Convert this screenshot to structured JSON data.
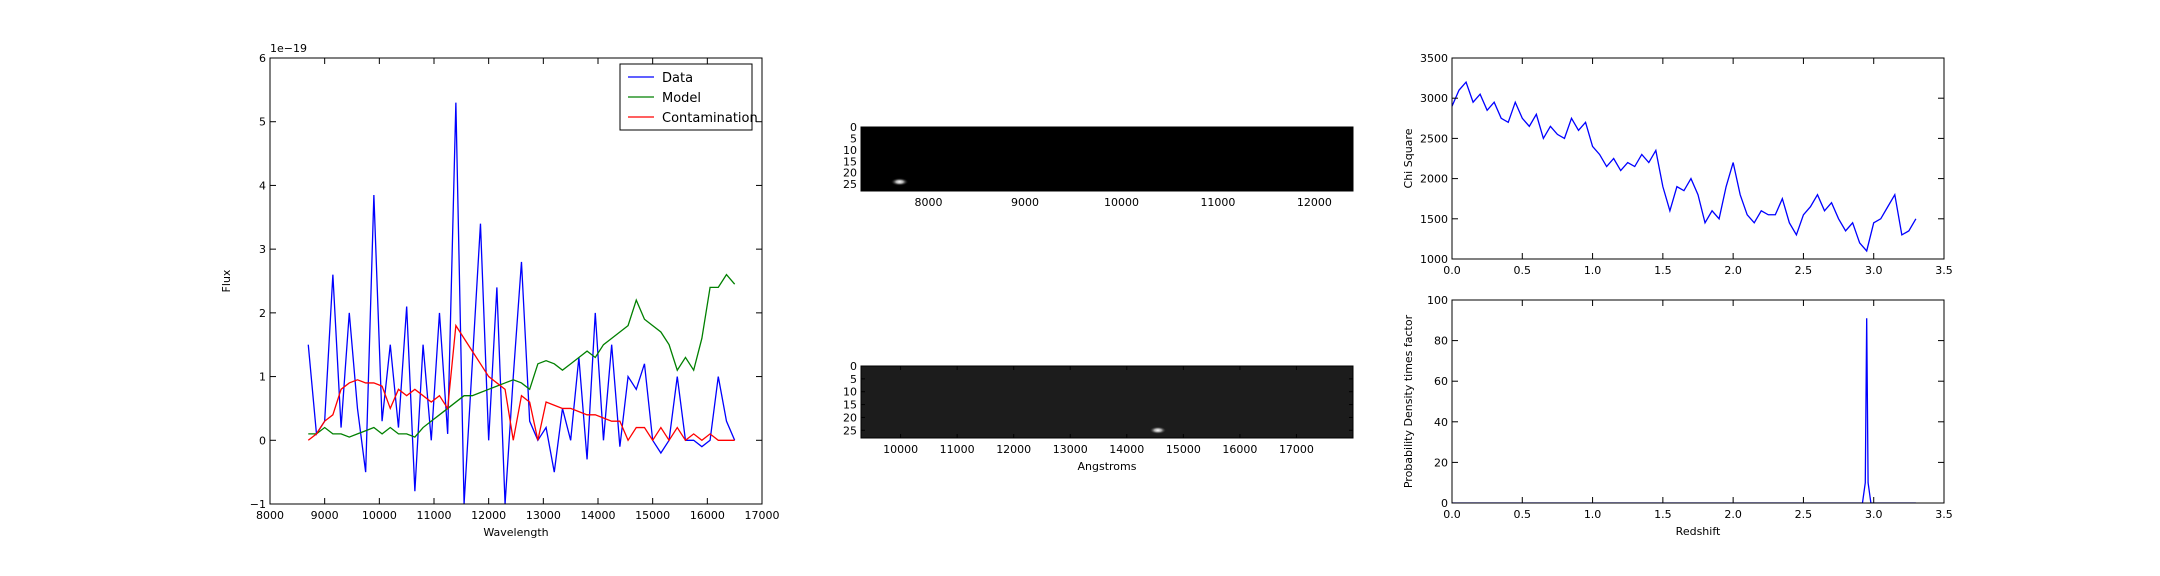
{
  "chart_data": [
    {
      "type": "line",
      "xlabel": "Wavelength",
      "ylabel": "Flux",
      "offset_label": "1e−19",
      "legend": "upper right",
      "xlim": [
        8000,
        17000
      ],
      "xticks": [
        8000,
        9000,
        10000,
        11000,
        12000,
        13000,
        14000,
        15000,
        16000,
        17000
      ],
      "ylim": [
        -1,
        6
      ],
      "yticks": [
        {
          "value": -1,
          "label": "−1"
        },
        0,
        1,
        2,
        3,
        4,
        5,
        6
      ],
      "x": [
        8700,
        8850,
        9000,
        9150,
        9300,
        9450,
        9600,
        9750,
        9900,
        10050,
        10200,
        10350,
        10500,
        10650,
        10800,
        10950,
        11100,
        11250,
        11400,
        11550,
        11700,
        11850,
        12000,
        12150,
        12300,
        12450,
        12600,
        12750,
        12900,
        13050,
        13200,
        13350,
        13500,
        13650,
        13800,
        13950,
        14100,
        14250,
        14400,
        14550,
        14700,
        14850,
        15000,
        15150,
        15300,
        15450,
        15600,
        15750,
        15900,
        16050,
        16200,
        16350,
        16500
      ],
      "series": [
        {
          "name": "Data",
          "color": "#0000ff",
          "values": [
            1.5,
            0.1,
            0.3,
            2.6,
            0.2,
            2.0,
            0.5,
            -0.5,
            3.85,
            0.3,
            1.5,
            0.2,
            2.1,
            -0.8,
            1.5,
            0.0,
            2.0,
            0.1,
            5.3,
            -1.0,
            1.2,
            3.4,
            0.0,
            2.4,
            -1.0,
            1.0,
            2.8,
            0.3,
            0.0,
            0.2,
            -0.5,
            0.5,
            0.0,
            1.3,
            -0.3,
            2.0,
            0.0,
            1.5,
            -0.1,
            1.0,
            0.8,
            1.2,
            0.0,
            -0.2,
            0.0,
            1.0,
            0.0,
            0.0,
            -0.1,
            0.0,
            1.0,
            0.3,
            0.0
          ]
        },
        {
          "name": "Model",
          "color": "#008000",
          "values": [
            0.1,
            0.1,
            0.2,
            0.1,
            0.1,
            0.05,
            0.1,
            0.15,
            0.2,
            0.1,
            0.2,
            0.1,
            0.1,
            0.05,
            0.2,
            0.3,
            0.4,
            0.5,
            0.6,
            0.7,
            0.7,
            0.75,
            0.8,
            0.85,
            0.9,
            0.95,
            0.9,
            0.8,
            1.2,
            1.25,
            1.2,
            1.1,
            1.2,
            1.3,
            1.4,
            1.3,
            1.5,
            1.6,
            1.7,
            1.8,
            2.2,
            1.9,
            1.8,
            1.7,
            1.5,
            1.1,
            1.3,
            1.1,
            1.6,
            2.4,
            2.4,
            2.6,
            2.45
          ]
        },
        {
          "name": "Contamination",
          "color": "#ff0000",
          "values": [
            0,
            0.1,
            0.3,
            0.4,
            0.8,
            0.9,
            0.95,
            0.9,
            0.9,
            0.85,
            0.5,
            0.8,
            0.7,
            0.8,
            0.7,
            0.6,
            0.7,
            0.5,
            1.8,
            1.6,
            1.4,
            1.2,
            1.0,
            0.9,
            0.8,
            0,
            0.7,
            0.6,
            0,
            0.6,
            0.55,
            0.5,
            0.5,
            0.45,
            0.4,
            0.4,
            0.35,
            0.3,
            0.3,
            0,
            0.2,
            0.2,
            0,
            0.2,
            0,
            0.2,
            0,
            0.1,
            0,
            0.1,
            0,
            0,
            0
          ]
        }
      ]
    },
    {
      "type": "image",
      "background": "#000000",
      "xlim": [
        7300,
        12400
      ],
      "xticks": [
        8000,
        9000,
        10000,
        11000,
        12000
      ],
      "ylim": [
        28,
        0
      ],
      "yticks": [
        0,
        5,
        10,
        15,
        20,
        25
      ],
      "spot": {
        "x": 7700,
        "y": 24
      }
    },
    {
      "type": "image",
      "background": "#1c1c1c",
      "xlabel": "Angstroms",
      "xlim": [
        9300,
        18000
      ],
      "xticks": [
        10000,
        11000,
        12000,
        13000,
        14000,
        15000,
        16000,
        17000
      ],
      "ylim": [
        28,
        0
      ],
      "yticks": [
        0,
        5,
        10,
        15,
        20,
        25
      ],
      "spot": {
        "x": 14550,
        "y": 25
      }
    },
    {
      "type": "line",
      "ylabel": "Chi Square",
      "color": "#0000ff",
      "xlim": [
        0,
        3.5
      ],
      "xticks": [
        {
          "value": 0,
          "label": "0.0"
        },
        0.5,
        {
          "value": 1,
          "label": "1.0"
        },
        1.5,
        {
          "value": 2,
          "label": "2.0"
        },
        2.5,
        {
          "value": 3,
          "label": "3.0"
        },
        3.5
      ],
      "ylim": [
        1000,
        3500
      ],
      "yticks": [
        1000,
        1500,
        2000,
        2500,
        3000,
        3500
      ],
      "x": [
        0,
        0.05,
        0.1,
        0.15,
        0.2,
        0.25,
        0.3,
        0.35,
        0.4,
        0.45,
        0.5,
        0.55,
        0.6,
        0.65,
        0.7,
        0.75,
        0.8,
        0.85,
        0.9,
        0.95,
        1.0,
        1.05,
        1.1,
        1.15,
        1.2,
        1.25,
        1.3,
        1.35,
        1.4,
        1.45,
        1.5,
        1.55,
        1.6,
        1.65,
        1.7,
        1.75,
        1.8,
        1.85,
        1.9,
        1.95,
        2.0,
        2.05,
        2.1,
        2.15,
        2.2,
        2.25,
        2.3,
        2.35,
        2.4,
        2.45,
        2.5,
        2.55,
        2.6,
        2.65,
        2.7,
        2.75,
        2.8,
        2.85,
        2.9,
        2.95,
        3.0,
        3.05,
        3.1,
        3.15,
        3.2,
        3.25,
        3.3
      ],
      "values": [
        2900,
        3100,
        3200,
        2950,
        3050,
        2850,
        2950,
        2750,
        2700,
        2950,
        2750,
        2650,
        2800,
        2500,
        2650,
        2550,
        2500,
        2750,
        2600,
        2700,
        2400,
        2300,
        2150,
        2250,
        2100,
        2200,
        2150,
        2300,
        2200,
        2350,
        1900,
        1600,
        1900,
        1850,
        2000,
        1800,
        1450,
        1600,
        1500,
        1900,
        2200,
        1800,
        1550,
        1450,
        1600,
        1550,
        1550,
        1750,
        1450,
        1300,
        1550,
        1650,
        1800,
        1600,
        1700,
        1500,
        1350,
        1450,
        1200,
        1100,
        1450,
        1500,
        1650,
        1800,
        1300,
        1350,
        1500
      ]
    },
    {
      "type": "line",
      "xlabel": "Redshift",
      "ylabel": "Probability Density times factor",
      "color": "#0000ff",
      "xlim": [
        0,
        3.5
      ],
      "xticks": [
        {
          "value": 0,
          "label": "0.0"
        },
        0.5,
        {
          "value": 1,
          "label": "1.0"
        },
        1.5,
        {
          "value": 2,
          "label": "2.0"
        },
        2.5,
        {
          "value": 3,
          "label": "3.0"
        },
        3.5
      ],
      "ylim": [
        0,
        100
      ],
      "yticks": [
        0,
        20,
        40,
        60,
        80,
        100
      ],
      "x": [
        0,
        2.92,
        2.94,
        2.95,
        2.96,
        2.98,
        3.3
      ],
      "values": [
        0,
        0,
        10,
        91,
        10,
        0,
        0
      ]
    }
  ]
}
